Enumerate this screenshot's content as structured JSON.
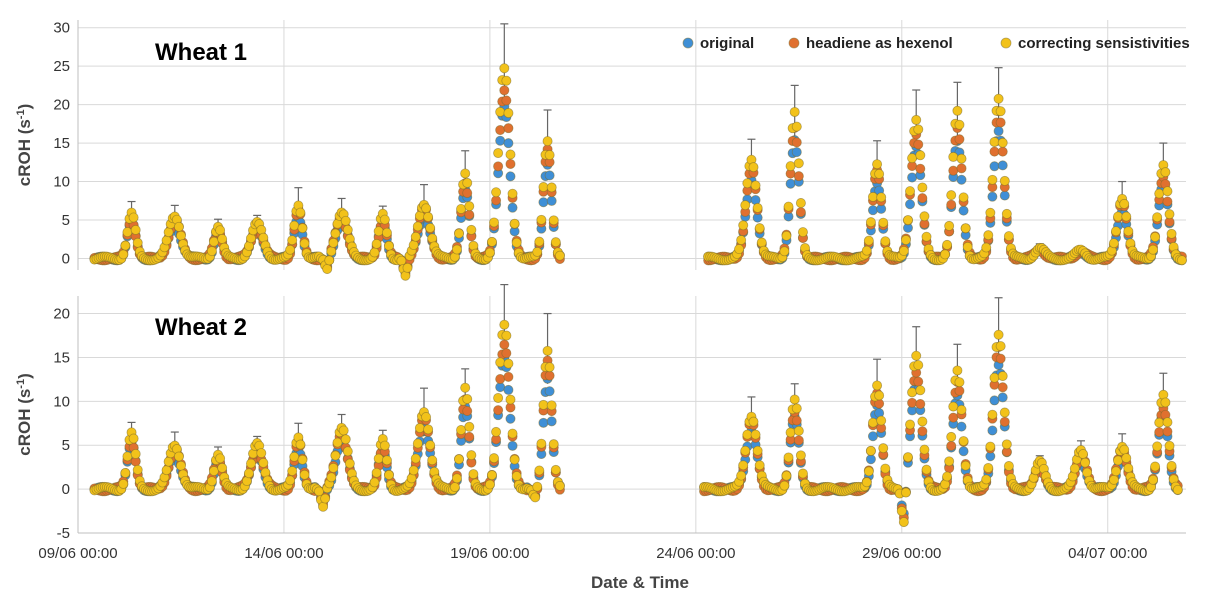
{
  "chart_data": {
    "type": "scatter",
    "xlabel": "Date & Time",
    "x_ticks": [
      "09/06 00:00",
      "14/06 00:00",
      "19/06 00:00",
      "24/06 00:00",
      "29/06 00:00",
      "04/07 00:00"
    ],
    "x_tick_days": [
      0,
      5,
      10,
      15,
      20,
      25
    ],
    "x_range_days": [
      0,
      26.9
    ],
    "grid": true,
    "legend_position": "top-right",
    "colors": {
      "original": "#3f8fd6",
      "headiene as hexenol": "#e0702f",
      "correcting sensistivities": "#f2c21a"
    },
    "legend": [
      "original",
      "headiene as hexenol",
      "correcting sensistivities"
    ],
    "panels": [
      {
        "title": "Wheat 1",
        "ylabel": "cROH (s",
        "ylabel_sup": "-1",
        "ylabel_close": ")",
        "yticks": [
          0,
          5,
          10,
          15,
          20,
          25,
          30
        ],
        "ylim": [
          -1.5,
          31
        ],
        "segments": [
          [
            0.4,
            11.7
          ],
          [
            15.3,
            26.8
          ]
        ],
        "peaks": [
          {
            "day": 1.3,
            "y": 5.8,
            "e": 1.6
          },
          {
            "day": 2.35,
            "y": 5.5,
            "e": 1.4
          },
          {
            "day": 3.4,
            "y": 4.2,
            "e": 0.9
          },
          {
            "day": 4.35,
            "y": 4.5,
            "e": 1.1
          },
          {
            "day": 5.35,
            "y": 7.0,
            "e": 2.2
          },
          {
            "day": 6.4,
            "y": 6.0,
            "e": 1.8
          },
          {
            "day": 7.4,
            "y": 5.6,
            "e": 1.2
          },
          {
            "day": 8.4,
            "y": 7.2,
            "e": 2.4
          },
          {
            "day": 9.4,
            "y": 11.0,
            "e": 3.0
          },
          {
            "day": 10.35,
            "y": 24.5,
            "e": 6.0
          },
          {
            "day": 11.4,
            "y": 15.5,
            "e": 3.8
          },
          {
            "day": 16.35,
            "y": 13.0,
            "e": 2.5
          },
          {
            "day": 17.4,
            "y": 19.0,
            "e": 3.5
          },
          {
            "day": 19.4,
            "y": 12.5,
            "e": 2.8
          },
          {
            "day": 20.35,
            "y": 18.0,
            "e": 3.9
          },
          {
            "day": 21.35,
            "y": 19.0,
            "e": 3.9
          },
          {
            "day": 22.35,
            "y": 21.0,
            "e": 3.8
          },
          {
            "day": 23.35,
            "y": 1.3,
            "e": 0.6
          },
          {
            "day": 24.35,
            "y": 1.0,
            "e": 0.5
          },
          {
            "day": 25.35,
            "y": 8.0,
            "e": 2.0
          },
          {
            "day": 26.35,
            "y": 12.0,
            "e": 3.0
          }
        ],
        "dips": [
          {
            "day": 7.95,
            "y": -2.0
          },
          {
            "day": 6.05,
            "y": -1.5
          }
        ]
      },
      {
        "title": "Wheat 2",
        "ylabel": "cROH (s",
        "ylabel_sup": "-1",
        "ylabel_close": ")",
        "yticks": [
          -5,
          0,
          5,
          10,
          15,
          20
        ],
        "ylim": [
          -5,
          22
        ],
        "segments": [
          [
            0.4,
            11.7
          ],
          [
            15.2,
            26.7
          ]
        ],
        "peaks": [
          {
            "day": 1.3,
            "y": 6.3,
            "e": 1.3
          },
          {
            "day": 2.35,
            "y": 5.0,
            "e": 1.5
          },
          {
            "day": 3.4,
            "y": 4.0,
            "e": 0.8
          },
          {
            "day": 4.35,
            "y": 5.0,
            "e": 1.0
          },
          {
            "day": 5.35,
            "y": 6.0,
            "e": 1.5
          },
          {
            "day": 6.4,
            "y": 7.0,
            "e": 1.5
          },
          {
            "day": 7.4,
            "y": 5.5,
            "e": 1.2
          },
          {
            "day": 8.4,
            "y": 9.0,
            "e": 2.5
          },
          {
            "day": 9.4,
            "y": 11.5,
            "e": 2.2
          },
          {
            "day": 10.35,
            "y": 18.5,
            "e": 4.8
          },
          {
            "day": 11.4,
            "y": 16.0,
            "e": 4.0
          },
          {
            "day": 16.35,
            "y": 8.5,
            "e": 2.0
          },
          {
            "day": 17.4,
            "y": 10.0,
            "e": 2.0
          },
          {
            "day": 19.4,
            "y": 12.0,
            "e": 2.8
          },
          {
            "day": 20.35,
            "y": 15.0,
            "e": 3.5
          },
          {
            "day": 21.35,
            "y": 13.5,
            "e": 3.0
          },
          {
            "day": 22.35,
            "y": 17.8,
            "e": 4.0
          },
          {
            "day": 23.35,
            "y": 3.0,
            "e": 0.8
          },
          {
            "day": 24.35,
            "y": 4.5,
            "e": 1.0
          },
          {
            "day": 25.35,
            "y": 5.0,
            "e": 1.3
          },
          {
            "day": 26.35,
            "y": 10.5,
            "e": 2.7
          }
        ],
        "dips": [
          {
            "day": 20.05,
            "y": -4.2
          },
          {
            "day": 11.1,
            "y": -1.0
          },
          {
            "day": 5.95,
            "y": -1.8
          }
        ]
      }
    ]
  }
}
